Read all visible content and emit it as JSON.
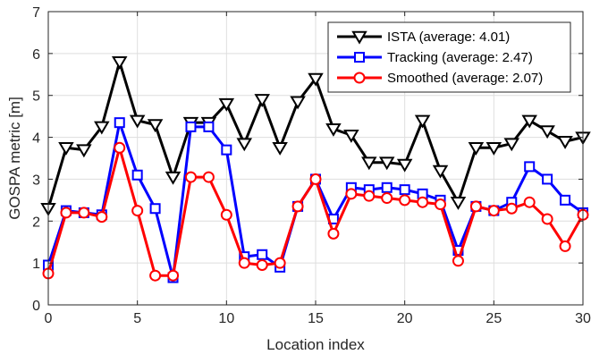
{
  "chart_data": {
    "type": "line",
    "xlabel": "Location index",
    "ylabel": "GOSPA metric [m]",
    "xlim": [
      0,
      30
    ],
    "ylim": [
      0,
      7
    ],
    "xticks": [
      0,
      5,
      10,
      15,
      20,
      25,
      30
    ],
    "yticks": [
      0,
      1,
      2,
      3,
      4,
      5,
      6,
      7
    ],
    "grid": true,
    "legend_position": "top-right",
    "x": [
      0,
      1,
      2,
      3,
      4,
      5,
      6,
      7,
      8,
      9,
      10,
      11,
      12,
      13,
      14,
      15,
      16,
      17,
      18,
      19,
      20,
      21,
      22,
      23,
      24,
      25,
      26,
      27,
      28,
      29,
      30
    ],
    "series": [
      {
        "name": "ISTA (average: 4.01)",
        "color": "#000000",
        "marker": "triangle-down",
        "values": [
          2.3,
          3.75,
          3.7,
          4.25,
          5.8,
          4.4,
          4.3,
          3.05,
          4.35,
          4.35,
          4.8,
          3.85,
          4.9,
          3.75,
          4.85,
          5.4,
          4.2,
          4.05,
          3.4,
          3.4,
          3.35,
          4.4,
          3.2,
          2.45,
          3.75,
          3.75,
          3.85,
          4.4,
          4.15,
          3.9,
          4.0
        ]
      },
      {
        "name": "Tracking (average: 2.47)",
        "color": "#0000ff",
        "marker": "square",
        "values": [
          0.95,
          2.25,
          2.2,
          2.15,
          4.35,
          3.1,
          2.3,
          0.65,
          4.25,
          4.25,
          3.7,
          1.15,
          1.2,
          0.9,
          2.35,
          3.0,
          2.05,
          2.8,
          2.75,
          2.8,
          2.75,
          2.65,
          2.5,
          1.3,
          2.35,
          2.25,
          2.45,
          3.3,
          3.0,
          2.5,
          2.2
        ]
      },
      {
        "name": "Smoothed (average: 2.07)",
        "color": "#ff0000",
        "marker": "circle",
        "values": [
          0.75,
          2.2,
          2.2,
          2.1,
          3.75,
          2.25,
          0.7,
          0.7,
          3.05,
          3.05,
          2.15,
          1.0,
          0.95,
          1.0,
          2.35,
          3.0,
          1.7,
          2.65,
          2.6,
          2.55,
          2.5,
          2.45,
          2.4,
          1.05,
          2.35,
          2.25,
          2.3,
          2.45,
          2.05,
          1.4,
          2.15
        ]
      }
    ]
  }
}
